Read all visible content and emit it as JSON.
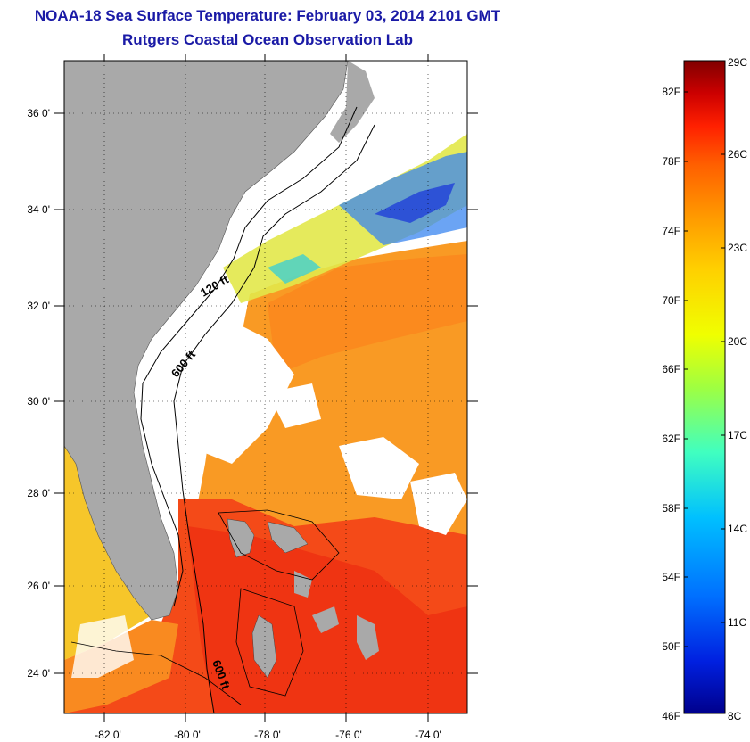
{
  "title": {
    "line1": "NOAA-18 Sea Surface Temperature:  February 03, 2014 2101 GMT",
    "line2": "Rutgers Coastal Ocean Observation Lab"
  },
  "map": {
    "lat_ticks": [
      "36 0'",
      "34 0'",
      "32 0'",
      "30 0'",
      "28 0'",
      "26 0'",
      "24 0'"
    ],
    "lon_ticks": [
      "-82 0'",
      "-80 0'",
      "-78 0'",
      "-76 0'",
      "-74 0'"
    ],
    "isobath_labels": [
      "120 ft",
      "600 ft",
      "600 ft"
    ]
  },
  "colorbar": {
    "fahrenheit_labels": [
      "82F",
      "78F",
      "74F",
      "70F",
      "66F",
      "62F",
      "58F",
      "54F",
      "50F",
      "46F"
    ],
    "celsius_labels": [
      "29C",
      "26C",
      "23C",
      "20C",
      "17C",
      "14C",
      "11C",
      "8C"
    ],
    "colors": [
      "#800000",
      "#cc0000",
      "#ff2000",
      "#ff6000",
      "#ff9a00",
      "#ffd000",
      "#f0ff00",
      "#a0ff40",
      "#40ffc0",
      "#00c0ff",
      "#0070ff",
      "#0020e0",
      "#00008c"
    ]
  },
  "colors": {
    "land": "#a9a9a9",
    "title": "#1a1aa6"
  }
}
